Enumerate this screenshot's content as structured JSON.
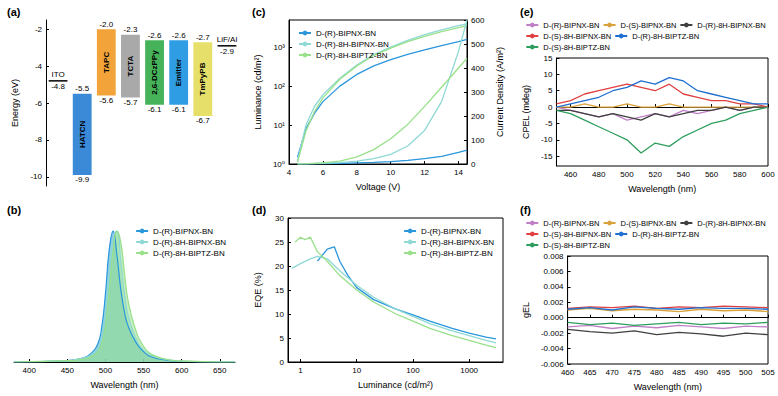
{
  "chart_data": [
    {
      "type": "levels",
      "title": "(a)",
      "ylabel": "Energy (eV)",
      "categories": [
        "ITO",
        "HATCN",
        "TAPC",
        "TCTA",
        "2,6-DCzPPy",
        "Emitter",
        "TmPyPB",
        "LiF/Al"
      ],
      "lumo": [
        null,
        -5.5,
        -2.0,
        -2.3,
        -2.6,
        -2.6,
        -2.7,
        null
      ],
      "homo": [
        null,
        -9.9,
        -5.6,
        -5.7,
        -6.1,
        -6.1,
        -6.7,
        null
      ],
      "work_function": [
        -4.8,
        null,
        null,
        null,
        null,
        null,
        null,
        -2.9
      ],
      "colors": [
        "#000000",
        "#3a8ad8",
        "#f2a33a",
        "#a9a9a9",
        "#46b35a",
        "#2f9de3",
        "#e6e06a",
        "#000000"
      ],
      "ylim": [
        -10.5,
        -1.5
      ],
      "yticks": [
        -10,
        -8,
        -6,
        -4,
        -2
      ],
      "tick_labels": "y",
      "grid": false
    },
    {
      "type": "area",
      "title": "(b)",
      "xlabel": "Wavelength (nm)",
      "xlim": [
        380,
        670
      ],
      "xticks": [
        400,
        450,
        500,
        550,
        600,
        650
      ],
      "ylim": [
        0,
        1.1
      ],
      "tick_labels": "x",
      "legend": "right",
      "grid": false,
      "series": [
        {
          "name": "D-(R)-BIPNX-BN",
          "color": "#2a96dc",
          "x": [
            380,
            450,
            470,
            480,
            490,
            495,
            500,
            505,
            510,
            515,
            520,
            525,
            530,
            540,
            550,
            560,
            580,
            600,
            650,
            670
          ],
          "values": [
            0,
            0.01,
            0.03,
            0.06,
            0.14,
            0.26,
            0.52,
            0.86,
            1.0,
            0.82,
            0.56,
            0.38,
            0.27,
            0.15,
            0.08,
            0.04,
            0.015,
            0.005,
            0,
            0
          ]
        },
        {
          "name": "D-(R)-8H-BIPNX-BN",
          "color": "#8fd9d4",
          "x": [
            380,
            450,
            470,
            480,
            490,
            495,
            500,
            505,
            510,
            515,
            520,
            525,
            530,
            540,
            550,
            560,
            580,
            600,
            650,
            670
          ],
          "values": [
            0,
            0.01,
            0.03,
            0.05,
            0.11,
            0.2,
            0.4,
            0.72,
            0.95,
            1.0,
            0.78,
            0.52,
            0.35,
            0.18,
            0.09,
            0.05,
            0.02,
            0.006,
            0,
            0
          ]
        },
        {
          "name": "D-(R)-8H-BIPTZ-BN",
          "color": "#98e08a",
          "x": [
            380,
            450,
            470,
            480,
            490,
            495,
            500,
            505,
            510,
            515,
            520,
            525,
            530,
            540,
            550,
            560,
            580,
            600,
            650,
            670
          ],
          "values": [
            0,
            0.01,
            0.02,
            0.04,
            0.08,
            0.14,
            0.28,
            0.55,
            0.85,
            1.0,
            0.92,
            0.68,
            0.46,
            0.24,
            0.12,
            0.06,
            0.02,
            0.008,
            0,
            0
          ]
        }
      ]
    },
    {
      "type": "line",
      "title": "(c)",
      "xlabel": "Voltage (V)",
      "ylabel": "Luminance (cd/m²)",
      "y2label": "Current Density (A/m²)",
      "x": [
        4.5,
        5,
        5.5,
        6,
        7,
        8,
        9,
        10,
        11,
        12,
        13,
        14,
        14.5
      ],
      "xlim": [
        4,
        14.5
      ],
      "xticks": [
        4,
        6,
        8,
        10,
        12,
        14
      ],
      "ylim": [
        1,
        5000
      ],
      "yticks": [
        {
          "value": 1,
          "label": "10⁰"
        },
        {
          "value": 10,
          "label": "10¹"
        },
        {
          "value": 100,
          "label": "10²"
        },
        {
          "value": 1000,
          "label": "10³"
        }
      ],
      "y2lim": [
        0,
        600
      ],
      "y2ticks": [
        0,
        100,
        200,
        300,
        400,
        500,
        600
      ],
      "log": "y",
      "legend": "upper left",
      "grid": false,
      "series": [
        {
          "name": "D-(R)-BIPNX-BN",
          "color": "#2a96dc",
          "values": [
            1.5,
            8,
            20,
            40,
            100,
            200,
            330,
            480,
            650,
            850,
            1100,
            1400,
            1600
          ]
        },
        {
          "name": "D-(R)-8H-BIPNX-BN",
          "color": "#8fd9d4",
          "values": [
            1.2,
            10,
            30,
            60,
            160,
            350,
            650,
            1000,
            1500,
            2100,
            2800,
            3600,
            4000
          ]
        },
        {
          "name": "D-(R)-8H-BIPTZ-BN",
          "color": "#98e08a",
          "values": [
            1.1,
            7,
            22,
            50,
            150,
            330,
            620,
            950,
            1400,
            1900,
            2500,
            3200,
            3600
          ]
        },
        {
          "name": "D-(R)-BIPNX-BN",
          "color": "#2a96dc",
          "axis": "y2",
          "values": [
            0.5,
            1,
            1.5,
            2,
            3,
            5,
            7,
            10,
            15,
            22,
            32,
            48,
            58
          ]
        },
        {
          "name": "D-(R)-8H-BIPNX-BN",
          "color": "#8fd9d4",
          "axis": "y2",
          "values": [
            0.5,
            1,
            2,
            3,
            6,
            12,
            22,
            40,
            75,
            140,
            260,
            470,
            600
          ]
        },
        {
          "name": "D-(R)-8H-BIPTZ-BN",
          "color": "#98e08a",
          "axis": "y2",
          "values": [
            0.5,
            1.5,
            3,
            5,
            12,
            30,
            60,
            105,
            165,
            240,
            320,
            400,
            440
          ]
        }
      ]
    },
    {
      "type": "line",
      "title": "(d)",
      "xlabel": "Luminance (cd/m²)",
      "ylabel": "EQE (%)",
      "xlim": [
        0.6,
        4000
      ],
      "xticks": [
        1,
        10,
        100,
        1000
      ],
      "ylim": [
        0,
        30
      ],
      "yticks": [
        0,
        5,
        10,
        15,
        20,
        25,
        30
      ],
      "log": "x",
      "legend": "upper right",
      "grid": false,
      "series": [
        {
          "name": "D-(R)-BIPNX-BN",
          "color": "#2a96dc",
          "x": [
            2,
            3,
            4,
            5,
            7,
            10,
            20,
            50,
            100,
            200,
            500,
            1000,
            2000,
            3000
          ],
          "values": [
            21,
            23.5,
            24,
            21,
            18,
            15.5,
            13,
            11,
            9.8,
            8.5,
            7,
            6,
            5.2,
            4.8
          ]
        },
        {
          "name": "D-(R)-8H-BIPNX-BN",
          "color": "#8fd9d4",
          "x": [
            0.7,
            1,
            1.5,
            2,
            3,
            5,
            10,
            20,
            50,
            100,
            200,
            500,
            1000,
            2000,
            3000
          ],
          "values": [
            19.5,
            20.5,
            21.5,
            22,
            21.5,
            19,
            16,
            13.5,
            11,
            9.5,
            8,
            6.5,
            5.5,
            4.5,
            4
          ]
        },
        {
          "name": "D-(R)-8H-BIPTZ-BN",
          "color": "#98e08a",
          "x": [
            0.8,
            1,
            1.2,
            1.5,
            2,
            3,
            5,
            10,
            20,
            50,
            100,
            200,
            500,
            1000,
            2000,
            3000
          ],
          "values": [
            25,
            26,
            25.5,
            26,
            23,
            21,
            18,
            15,
            12.5,
            10,
            8.5,
            7,
            5.5,
            4.5,
            3.5,
            3
          ]
        }
      ]
    },
    {
      "type": "line",
      "title": "(e)",
      "xlabel": "Wavelength (nm)",
      "ylabel": "CPEL (mdeg)",
      "x": [
        450,
        460,
        470,
        480,
        490,
        500,
        510,
        520,
        530,
        540,
        550,
        560,
        570,
        580,
        590,
        600
      ],
      "xlim": [
        450,
        600
      ],
      "xticks": [
        460,
        480,
        500,
        520,
        540,
        560,
        580,
        600
      ],
      "ylim": [
        -18,
        15
      ],
      "yticks": [
        -15,
        -10,
        -5,
        0,
        5,
        10,
        15
      ],
      "legend": "top",
      "grid": false,
      "series": [
        {
          "name": "D-(R)-BIPNX-BN",
          "color": "#c080c8",
          "values": [
            0,
            -1,
            -2,
            -3,
            -2,
            -4,
            -3,
            -2,
            -3,
            -1,
            -2,
            -1,
            0,
            -1,
            0,
            0
          ]
        },
        {
          "name": "D-(S)-BIPNX-BN",
          "color": "#d9a23a",
          "values": [
            0,
            0,
            1,
            0,
            0,
            1,
            0,
            0,
            1,
            0,
            0,
            0,
            0,
            0,
            0,
            0
          ]
        },
        {
          "name": "D-(R)-8H-BIPNX-BN",
          "color": "#404040",
          "values": [
            -1,
            -1,
            -2,
            -3,
            -2,
            -3,
            -4,
            -2,
            -3,
            -2,
            -1,
            -1,
            0,
            -1,
            0,
            0
          ]
        },
        {
          "name": "D-(S)-8H-BIPNX-BN",
          "color": "#e04040",
          "values": [
            1,
            2,
            4,
            5,
            6,
            7,
            6,
            5,
            7,
            4,
            3,
            2,
            2,
            1,
            1,
            0
          ]
        },
        {
          "name": "D-(R)-8H-BIPTZ-BN",
          "color": "#1f6fd0",
          "values": [
            0,
            1,
            2,
            3,
            5,
            6,
            8,
            7,
            9,
            8,
            5,
            4,
            3,
            2,
            1,
            1
          ]
        },
        {
          "name": "D-(S)-8H-BIPTZ-BN",
          "color": "#2e9e5e",
          "values": [
            -1,
            -2,
            -4,
            -6,
            -8,
            -10,
            -14,
            -11,
            -12,
            -9,
            -7,
            -5,
            -4,
            -2,
            -1,
            0
          ]
        }
      ]
    },
    {
      "type": "line",
      "title": "(f)",
      "xlabel": "Wavelength (nm)",
      "ylabel": "gEL",
      "x": [
        460,
        465,
        470,
        475,
        480,
        485,
        490,
        495,
        500,
        505
      ],
      "xlim": [
        460,
        505
      ],
      "xticks": [
        460,
        465,
        470,
        475,
        480,
        485,
        490,
        495,
        500,
        505
      ],
      "ylim": [
        -0.006,
        0.008
      ],
      "yticks": [
        -0.006,
        -0.004,
        -0.002,
        {
          "value": 0,
          "label": "0.000"
        },
        0.002,
        0.004,
        0.006,
        0.008
      ],
      "legend": "top",
      "grid": false,
      "series": [
        {
          "name": "D-(R)-BIPNX-BN",
          "color": "#c080c8",
          "values": [
            -0.0012,
            -0.001,
            -0.0014,
            -0.0011,
            -0.0013,
            -0.001,
            -0.0012,
            -0.0014,
            -0.0011,
            -0.0012
          ]
        },
        {
          "name": "D-(S)-BIPNX-BN",
          "color": "#d9a23a",
          "values": [
            0.001,
            0.0012,
            0.0009,
            0.0011,
            0.001,
            0.0008,
            0.0011,
            0.0009,
            0.001,
            0.0008
          ]
        },
        {
          "name": "D-(R)-8H-BIPNX-BN",
          "color": "#404040",
          "values": [
            -0.0015,
            -0.0018,
            -0.002,
            -0.0017,
            -0.0022,
            -0.0019,
            -0.0021,
            -0.0024,
            -0.002,
            -0.0022
          ]
        },
        {
          "name": "D-(S)-8H-BIPNX-BN",
          "color": "#e04040",
          "values": [
            0.0012,
            0.0014,
            0.0013,
            0.0015,
            0.0012,
            0.0014,
            0.0013,
            0.0015,
            0.0014,
            0.0013
          ]
        },
        {
          "name": "D-(R)-8H-BIPTZ-BN",
          "color": "#1f6fd0",
          "values": [
            0.0011,
            0.0013,
            0.001,
            0.0014,
            0.0012,
            0.0011,
            0.0013,
            0.0012,
            0.0012,
            0.0011
          ]
        },
        {
          "name": "D-(S)-8H-BIPTZ-BN",
          "color": "#2e9e5e",
          "values": [
            -0.0006,
            -0.0009,
            -0.0007,
            -0.001,
            -0.0008,
            -0.0006,
            -0.0009,
            -0.0007,
            -0.0008,
            -0.0006
          ]
        }
      ]
    }
  ]
}
